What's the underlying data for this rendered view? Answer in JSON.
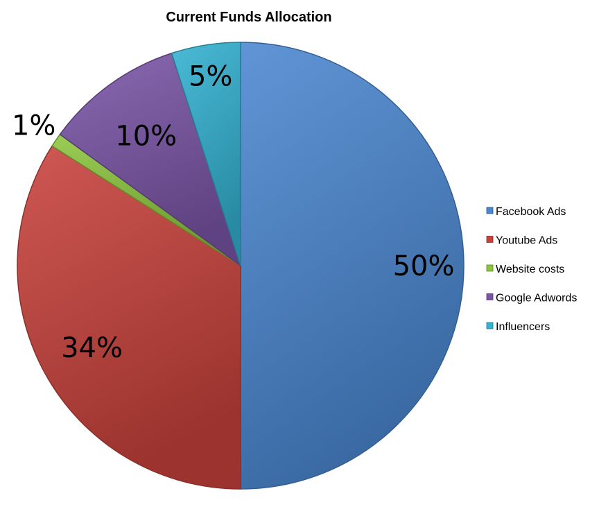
{
  "chart_data": {
    "type": "pie",
    "title": "Current Funds Allocation",
    "categories": [
      "Facebook Ads",
      "Youtube Ads",
      "Website costs",
      "Google Adwords",
      "Influencers"
    ],
    "values": [
      50,
      34,
      1,
      10,
      5
    ],
    "labels": [
      "50%",
      "34%",
      "1%",
      "10%",
      "5%"
    ],
    "colors": [
      "#4A86D0",
      "#C8413B",
      "#8CC63E",
      "#7A55A6",
      "#33B2D1"
    ],
    "legend_position": "right",
    "start_angle": "top, clockwise"
  }
}
